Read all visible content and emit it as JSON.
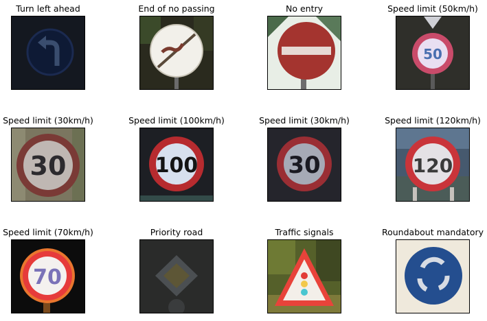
{
  "figure": {
    "items": [
      {
        "title": "Turn left ahead",
        "sign": "turn-left-ahead"
      },
      {
        "title": "End of no passing",
        "sign": "end-of-no-passing"
      },
      {
        "title": "No entry",
        "sign": "no-entry"
      },
      {
        "title": "Speed limit (50km/h)",
        "sign": "speed-limit-50",
        "digits": "50"
      },
      {
        "title": "Speed limit (30km/h)",
        "sign": "speed-limit-30",
        "digits": "30"
      },
      {
        "title": "Speed limit (100km/h)",
        "sign": "speed-limit-100",
        "digits": "100"
      },
      {
        "title": "Speed limit (30km/h)",
        "sign": "speed-limit-30",
        "digits": "30"
      },
      {
        "title": "Speed limit (120km/h)",
        "sign": "speed-limit-120",
        "digits": "120"
      },
      {
        "title": "Speed limit (70km/h)",
        "sign": "speed-limit-70",
        "digits": "70"
      },
      {
        "title": "Priority road",
        "sign": "priority-road"
      },
      {
        "title": "Traffic signals",
        "sign": "traffic-signals"
      },
      {
        "title": "Roundabout mandatory",
        "sign": "roundabout-mandatory"
      }
    ]
  }
}
